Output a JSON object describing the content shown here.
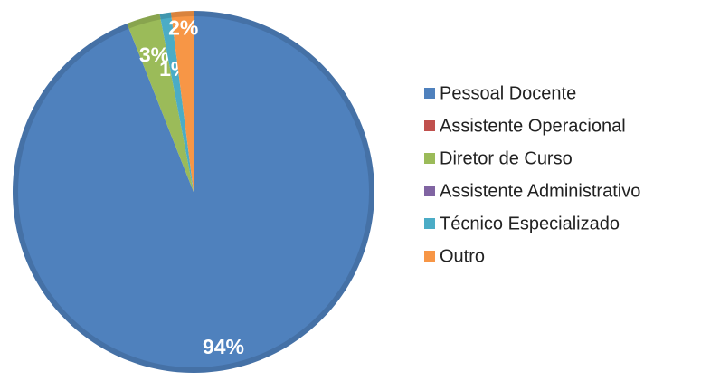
{
  "chart_data": {
    "type": "pie",
    "categories": [
      "Pessoal Docente",
      "Assistente Operacional",
      "Diretor de Curso",
      "Assistente Administrativo",
      "Técnico Especializado",
      "Outro"
    ],
    "values": [
      94,
      0,
      3,
      0,
      1,
      2
    ],
    "value_labels": [
      "94%",
      null,
      "3%",
      null,
      "1%",
      "2%"
    ],
    "colors": [
      "#4f81bd",
      "#c0504d",
      "#9bbb59",
      "#8064a2",
      "#4bacc6",
      "#f79646"
    ],
    "legend": "right"
  }
}
